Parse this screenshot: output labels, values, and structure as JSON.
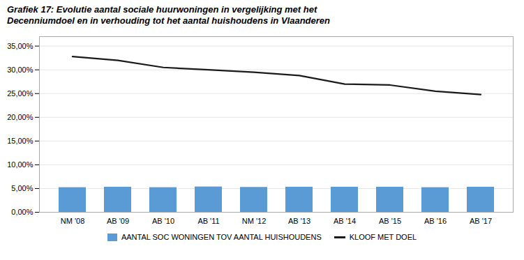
{
  "chart_data": {
    "type": "bar",
    "title": "Grafiek 17: Evolutie aantal sociale huurwoningen in vergelijking met het\nDecenniumdoel en in verhouding tot het aantal huishoudens in Vlaanderen",
    "categories": [
      "NM '08",
      "AB '09",
      "AB '10",
      "AB '11",
      "NM '12",
      "AB '13",
      "AB '14",
      "AB '15",
      "AB '16",
      "AB '17"
    ],
    "series": [
      {
        "name": "AANTAL SOC WONINGEN TOV AANTAL HUISHOUDENS",
        "type": "bar",
        "color": "#5B9BD5",
        "values": [
          5.2,
          5.3,
          5.2,
          5.35,
          5.25,
          5.3,
          5.3,
          5.3,
          5.2,
          5.3
        ]
      },
      {
        "name": "KLOOF MET DOEL",
        "type": "line",
        "color": "#1A1A1A",
        "values": [
          32.8,
          32.0,
          30.5,
          30.0,
          29.5,
          28.8,
          27.0,
          26.8,
          25.5,
          24.8
        ]
      }
    ],
    "ylim": [
      0,
      37
    ],
    "yticks": [
      {
        "value": 0,
        "label": "0,00%"
      },
      {
        "value": 5,
        "label": "5,00%"
      },
      {
        "value": 10,
        "label": "10,00%"
      },
      {
        "value": 15,
        "label": "15,00%"
      },
      {
        "value": 20,
        "label": "20,00%"
      },
      {
        "value": 25,
        "label": "25,00%"
      },
      {
        "value": 30,
        "label": "30,00%"
      },
      {
        "value": 35,
        "label": "35,00%"
      }
    ],
    "grid": true,
    "legend": "bottom"
  }
}
